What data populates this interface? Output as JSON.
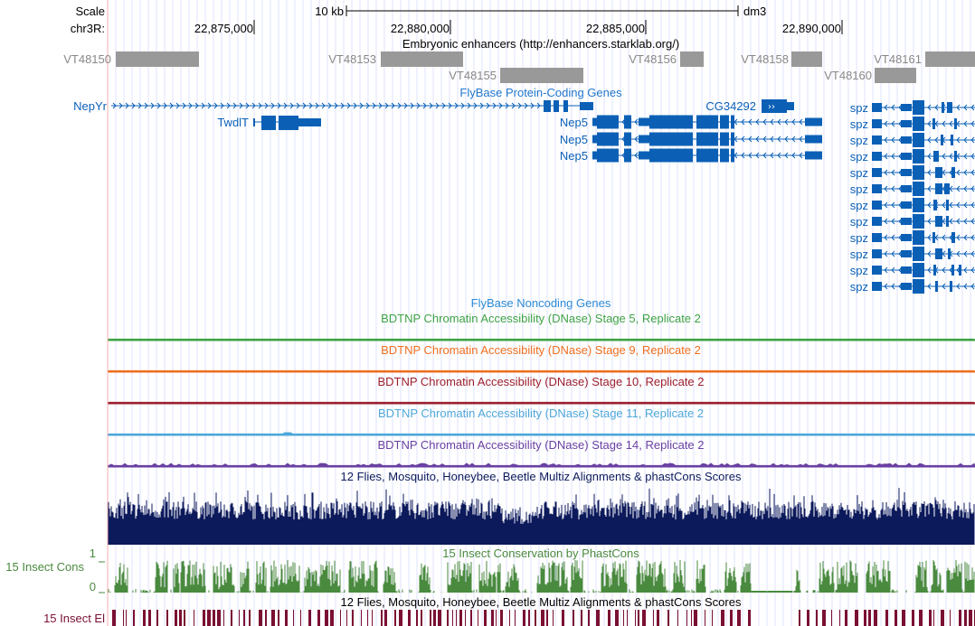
{
  "ruler": {
    "scale_label": "Scale",
    "scale_value": "10 kb",
    "assembly": "dm3",
    "chrom_label": "chr3R:",
    "positions": [
      {
        "label": "22,875,000",
        "bp": 22875000
      },
      {
        "label": "22,880,000",
        "bp": 22880000
      },
      {
        "label": "22,885,000",
        "bp": 22885000
      },
      {
        "label": "22,890,000",
        "bp": 22890000
      }
    ]
  },
  "colors": {
    "gene_blue": "#0b60b6",
    "gene_title_blue": "#2277cc",
    "noncoding_blue": "#2b8ad6",
    "enhancer_gray": "#999999",
    "enhancer_label_gray": "#888888",
    "stage5_green": "#3ea245",
    "stage9_orange": "#ee6f1f",
    "stage10_darkred": "#9c1f2d",
    "stage11_lightblue": "#4ea7d8",
    "stage14_purple": "#6a40a2",
    "multiz_navy": "#0c1a5b",
    "phastcons_green": "#4a8a3f",
    "elements_maroon": "#7a1032",
    "grid_blue": "#dfe3ff",
    "left_border": "#f6b2b2"
  },
  "tracks": {
    "enhancers": {
      "title": "Embryonic enhancers (http://enhancers.starklab.org/)",
      "items": [
        "VT48150",
        "VT48153",
        "VT48155",
        "VT48156",
        "VT48158",
        "VT48160",
        "VT48161"
      ]
    },
    "genes": {
      "title": "FlyBase Protein-Coding Genes",
      "names": [
        "NepYr",
        "TwdlT",
        "CG34292",
        "Nep5",
        "Nep5",
        "Nep5",
        "spz",
        "spz",
        "spz",
        "spz",
        "spz",
        "spz",
        "spz",
        "spz",
        "spz",
        "spz",
        "spz",
        "spz"
      ]
    },
    "noncoding": {
      "title": "FlyBase Noncoding Genes"
    },
    "dnase": [
      {
        "title": "BDTNP Chromatin Accessibility (DNase) Stage 5, Replicate 2"
      },
      {
        "title": "BDTNP Chromatin Accessibility (DNase) Stage 9, Replicate 2"
      },
      {
        "title": "BDTNP Chromatin Accessibility (DNase) Stage 10, Replicate 2"
      },
      {
        "title": "BDTNP Chromatin Accessibility (DNase) Stage 11, Replicate 2"
      },
      {
        "title": "BDTNP Chromatin Accessibility (DNase) Stage 14, Replicate 2"
      }
    ],
    "multiz": {
      "title": "12 Flies, Mosquito, Honeybee, Beetle Multiz Alignments & phastCons Scores"
    },
    "phastcons": {
      "title": "15 Insect Conservation by PhastCons",
      "side_label": "15 Insect Cons",
      "ymax_label": "1",
      "ymin_label": "0"
    },
    "elements": {
      "title": "12 Flies, Mosquito, Honeybee, Beetle Multiz Alignments & phastCons Scores",
      "side_label": "15 Insect El"
    }
  }
}
